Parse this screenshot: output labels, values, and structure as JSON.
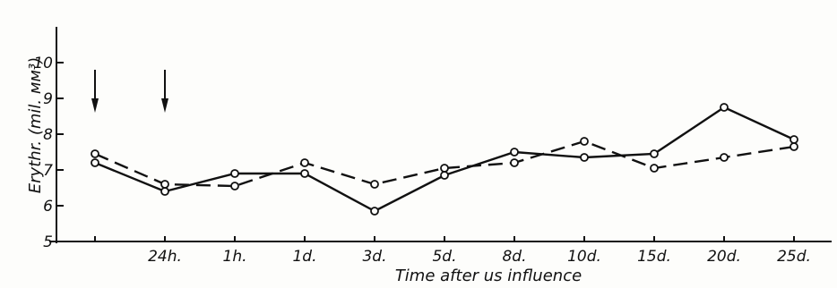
{
  "chart_data": {
    "type": "line",
    "ylabel": "Erythr. (mil. мм³)",
    "xlabel": "Time after us influence",
    "ylim": [
      5,
      11
    ],
    "yticks": [
      5,
      6,
      7,
      8,
      9,
      10
    ],
    "categories": [
      "",
      "24h.",
      "1h.",
      "1d.",
      "3d.",
      "5d.",
      "8d.",
      "10d.",
      "15d.",
      "20d.",
      "25d."
    ],
    "series": [
      {
        "style": "solid",
        "values": [
          7.2,
          6.4,
          6.9,
          6.9,
          5.85,
          6.85,
          7.5,
          7.35,
          7.45,
          8.75,
          7.85
        ]
      },
      {
        "style": "dashed",
        "values": [
          7.45,
          6.6,
          6.55,
          7.2,
          6.6,
          7.05,
          7.2,
          7.8,
          7.05,
          7.35,
          7.65
        ]
      }
    ],
    "arrows_at": [
      0,
      1
    ],
    "grid": false
  }
}
